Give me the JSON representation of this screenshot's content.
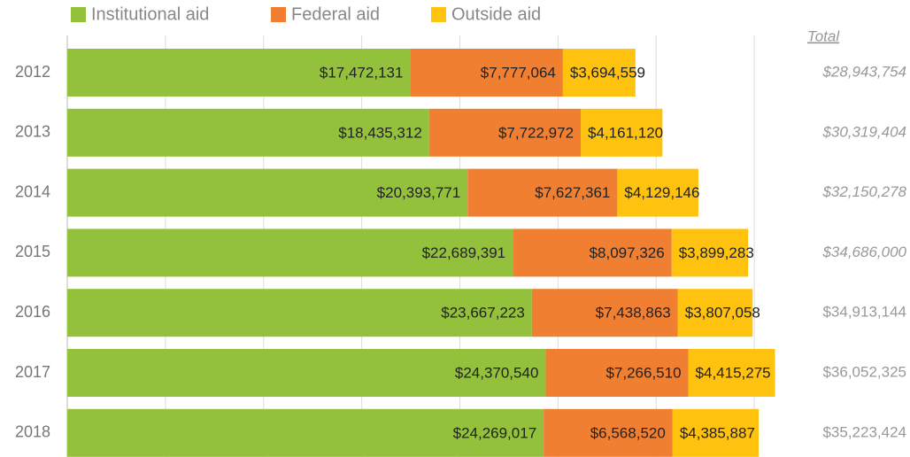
{
  "chart_data": {
    "type": "stacked-barh",
    "categories": [
      "2012",
      "2013",
      "2014",
      "2015",
      "2016",
      "2017",
      "2018"
    ],
    "series": [
      {
        "name": "Institutional aid",
        "color": "#93c13c",
        "values": [
          17472131,
          18435312,
          20393771,
          22689391,
          23667223,
          24370540,
          24269017
        ],
        "value_labels": [
          "$17,472,131",
          "$18,435,312",
          "$20,393,771",
          "$22,689,391",
          "$23,667,223",
          "$24,370,540",
          "$24,269,017"
        ]
      },
      {
        "name": "Federal aid",
        "color": "#f07f32",
        "values": [
          7777064,
          7722972,
          7627361,
          8097326,
          7438863,
          7266510,
          6568520
        ],
        "value_labels": [
          "$7,777,064",
          "$7,722,972",
          "$7,627,361",
          "$8,097,326",
          "$7,438,863",
          "$7,266,510",
          "$6,568,520"
        ]
      },
      {
        "name": "Outside aid",
        "color": "#ffc20e",
        "values": [
          3694559,
          4161120,
          4129146,
          3899283,
          3807058,
          4415275,
          4385887
        ],
        "value_labels": [
          "$3,694,559",
          "$4,161,120",
          "$4,129,146",
          "$3,899,283",
          "$3,807,058",
          "$4,415,275",
          "$4,385,887"
        ]
      }
    ],
    "totals": {
      "title": "Total",
      "labels": [
        "$28,943,754",
        "$30,319,404",
        "$32,150,278",
        "$34,686,000",
        "$34,913,144",
        "$36,052,325",
        "$35,223,424"
      ],
      "italic": [
        true,
        true,
        true,
        true,
        false,
        false,
        false
      ]
    },
    "xlim": [
      0,
      40000000
    ],
    "xticks": [
      0,
      5000000,
      10000000,
      15000000,
      20000000,
      25000000,
      30000000,
      35000000
    ],
    "grid": true,
    "legend": "top-left"
  }
}
